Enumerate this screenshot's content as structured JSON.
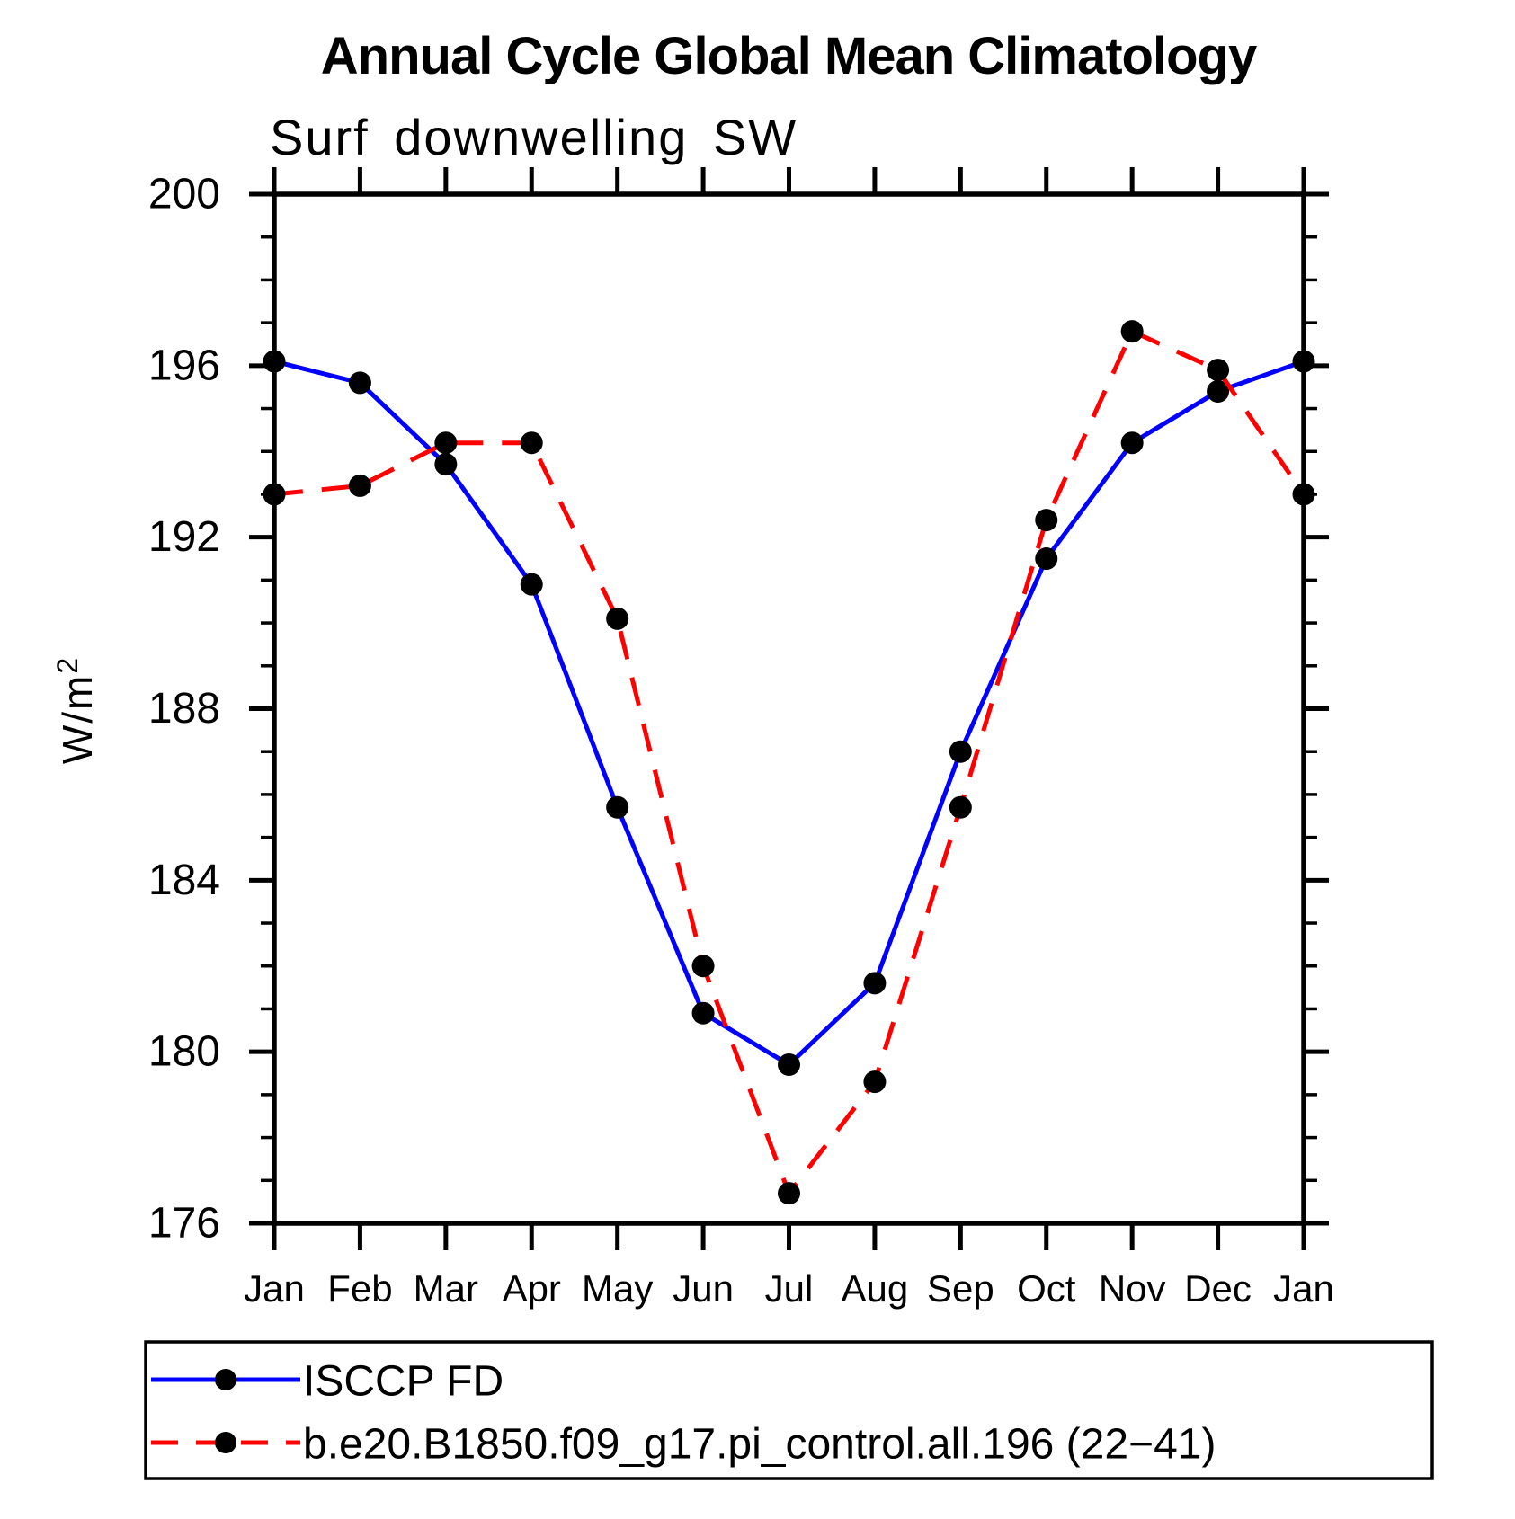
{
  "chart": {
    "title": "Annual Cycle Global Mean Climatology",
    "subtitle": "Surf downwelling SW",
    "ylabel_base": "W/m",
    "ylabel_sup": "2"
  },
  "chart_data": {
    "type": "line",
    "title": "Annual Cycle Global Mean Climatology",
    "subtitle": "Surf downwelling SW",
    "ylabel": "W/m2",
    "x_categories": [
      "Jan",
      "Feb",
      "Mar",
      "Apr",
      "May",
      "Jun",
      "Jul",
      "Aug",
      "Sep",
      "Oct",
      "Nov",
      "Dec",
      "Jan"
    ],
    "ylim": [
      176,
      200
    ],
    "yticks_major": [
      176,
      180,
      184,
      188,
      192,
      196,
      200
    ],
    "ytick_minor_step": 1,
    "grid": false,
    "legend_position": "bottom",
    "series": [
      {
        "name": "ISCCP FD",
        "color": "#0000ff",
        "style": "solid",
        "marker": "circle",
        "marker_color": "#000000",
        "values": [
          196.1,
          195.6,
          193.7,
          190.9,
          185.7,
          180.9,
          179.7,
          181.6,
          187.0,
          191.5,
          194.2,
          195.4,
          196.1
        ]
      },
      {
        "name": "b.e20.B1850.f09_g17.pi_control.all.196 (22−41)",
        "color": "#ff0000",
        "style": "dashed",
        "marker": "circle",
        "marker_color": "#000000",
        "values": [
          193.0,
          193.2,
          194.2,
          194.2,
          190.1,
          182.0,
          176.7,
          179.3,
          185.7,
          192.4,
          196.8,
          195.9,
          193.0
        ]
      }
    ]
  }
}
